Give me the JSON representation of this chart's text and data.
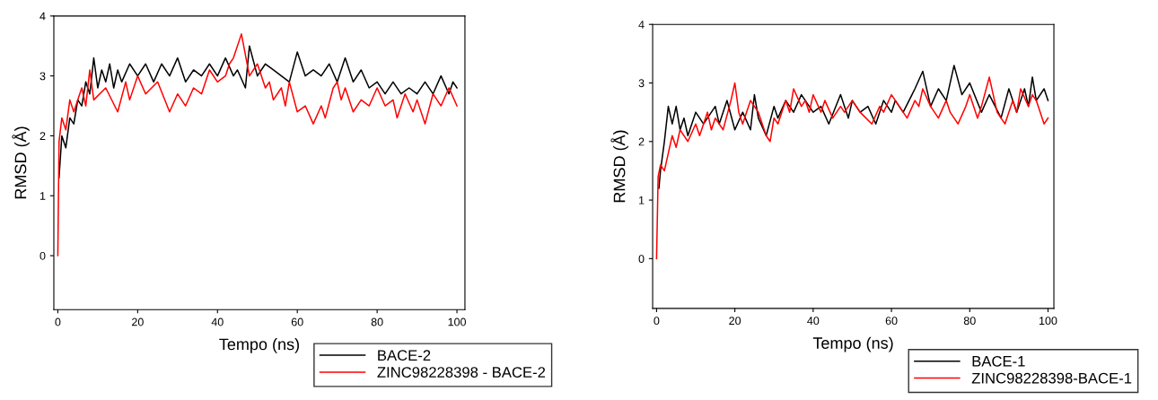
{
  "chart_data": [
    {
      "type": "line",
      "xlabel": "Tempo (ns)",
      "ylabel": "RMSD (Å)",
      "xlim": [
        -1,
        102
      ],
      "ylim": [
        -0.9,
        4
      ],
      "xticks": [
        0,
        20,
        40,
        60,
        80,
        100
      ],
      "yticks": [
        0,
        1,
        2,
        3,
        4
      ],
      "legend": "bottom right",
      "series": [
        {
          "name": "BACE-2",
          "color": "#000000",
          "x": [
            0.3,
            0.6,
            1,
            2,
            3,
            4,
            5,
            6,
            7,
            8,
            9,
            10,
            11,
            12,
            13,
            14,
            15,
            16,
            18,
            20,
            22,
            24,
            26,
            28,
            30,
            32,
            34,
            36,
            38,
            40,
            42,
            44,
            45,
            47,
            48,
            50,
            52,
            54,
            56,
            58,
            60,
            62,
            64,
            66,
            68,
            70,
            72,
            74,
            76,
            78,
            80,
            82,
            84,
            86,
            88,
            90,
            92,
            94,
            96,
            98,
            99,
            100
          ],
          "values": [
            1.3,
            1.6,
            2.0,
            1.8,
            2.3,
            2.2,
            2.6,
            2.5,
            2.9,
            2.7,
            3.3,
            2.8,
            3.1,
            2.9,
            3.2,
            2.8,
            3.1,
            2.9,
            3.2,
            3.0,
            3.2,
            2.9,
            3.2,
            3.0,
            3.3,
            2.9,
            3.1,
            3.0,
            3.2,
            3.0,
            3.3,
            3.0,
            3.1,
            2.8,
            3.5,
            3.0,
            3.2,
            3.1,
            3.0,
            2.9,
            3.4,
            3.0,
            3.1,
            3.0,
            3.2,
            2.9,
            3.3,
            2.9,
            3.1,
            2.8,
            2.9,
            2.7,
            2.9,
            2.7,
            2.8,
            2.7,
            2.9,
            2.7,
            3.0,
            2.7,
            2.9,
            2.8
          ]
        },
        {
          "name": "ZINC98228398 - BACE-2",
          "color": "#ff0000",
          "x": [
            0,
            0.3,
            1,
            2,
            3,
            4,
            6,
            7,
            8,
            9,
            12,
            15,
            17,
            18,
            20,
            22,
            25,
            28,
            30,
            32,
            34,
            36,
            38,
            40,
            42,
            43,
            44,
            46,
            48,
            50,
            52,
            53,
            54,
            56,
            57,
            58,
            60,
            62,
            64,
            66,
            67,
            69,
            70,
            71,
            72,
            74,
            76,
            78,
            80,
            82,
            84,
            85,
            87,
            89,
            90,
            92,
            94,
            96,
            98,
            100
          ],
          "values": [
            0,
            1.9,
            2.3,
            2.1,
            2.6,
            2.4,
            2.8,
            2.5,
            3.1,
            2.6,
            2.8,
            2.4,
            2.9,
            2.6,
            3.0,
            2.7,
            2.9,
            2.4,
            2.7,
            2.5,
            2.8,
            2.7,
            3.1,
            2.9,
            3.0,
            3.2,
            3.3,
            3.7,
            3.0,
            3.2,
            2.8,
            2.9,
            2.6,
            2.8,
            2.5,
            2.9,
            2.4,
            2.5,
            2.2,
            2.5,
            2.3,
            2.8,
            2.9,
            2.6,
            2.8,
            2.4,
            2.6,
            2.5,
            2.8,
            2.5,
            2.6,
            2.3,
            2.7,
            2.4,
            2.6,
            2.2,
            2.7,
            2.5,
            2.8,
            2.5
          ]
        }
      ]
    },
    {
      "type": "line",
      "xlabel": "Tempo (ns)",
      "ylabel": "RMSD (Å)",
      "xlim": [
        -1,
        101.5
      ],
      "ylim": [
        -0.85,
        4
      ],
      "xticks": [
        0,
        20,
        40,
        60,
        80,
        100
      ],
      "yticks": [
        0,
        1,
        2,
        3,
        4
      ],
      "legend": "bottom right",
      "series": [
        {
          "name": "BACE-1",
          "color": "#000000",
          "x": [
            0.6,
            1,
            2,
            3,
            4,
            5,
            6,
            7,
            8,
            10,
            12,
            15,
            16,
            18,
            20,
            22,
            24,
            25,
            26,
            28,
            30,
            31,
            33,
            35,
            37,
            40,
            42,
            44,
            47,
            49,
            50,
            52,
            54,
            56,
            58,
            60,
            61,
            63,
            66,
            68,
            70,
            72,
            74,
            76,
            78,
            80,
            83,
            85,
            88,
            90,
            92,
            94,
            95,
            96,
            97,
            99,
            100
          ],
          "values": [
            1.2,
            1.5,
            2.0,
            2.6,
            2.3,
            2.6,
            2.2,
            2.4,
            2.1,
            2.5,
            2.3,
            2.6,
            2.3,
            2.7,
            2.2,
            2.5,
            2.2,
            2.8,
            2.4,
            2.1,
            2.6,
            2.4,
            2.7,
            2.5,
            2.8,
            2.5,
            2.6,
            2.3,
            2.8,
            2.4,
            2.7,
            2.5,
            2.6,
            2.3,
            2.7,
            2.5,
            2.7,
            2.5,
            2.9,
            3.2,
            2.6,
            2.9,
            2.7,
            3.3,
            2.8,
            3.0,
            2.5,
            2.8,
            2.4,
            2.9,
            2.5,
            2.9,
            2.6,
            3.1,
            2.7,
            2.9,
            2.7
          ]
        },
        {
          "name": "ZINC98228398-BACE-1",
          "color": "#ff0000",
          "x": [
            0,
            0.4,
            1,
            2,
            3,
            4,
            5,
            6,
            8,
            10,
            11,
            13,
            14,
            15,
            17,
            19,
            20,
            21,
            22,
            24,
            26,
            28,
            29,
            30,
            31,
            33,
            34,
            35,
            37,
            38,
            39,
            40,
            42,
            43,
            45,
            47,
            48,
            50,
            52,
            55,
            57,
            58,
            60,
            62,
            64,
            66,
            67,
            68,
            70,
            72,
            74,
            75,
            77,
            79,
            80,
            82,
            83,
            85,
            86,
            87,
            89,
            91,
            92,
            93,
            95,
            96,
            97,
            99,
            100
          ],
          "values": [
            0,
            1.4,
            1.6,
            1.5,
            1.8,
            2.1,
            1.9,
            2.2,
            2.0,
            2.3,
            2.1,
            2.5,
            2.2,
            2.4,
            2.2,
            2.7,
            3.0,
            2.5,
            2.3,
            2.7,
            2.5,
            2.1,
            2.0,
            2.4,
            2.3,
            2.7,
            2.5,
            2.9,
            2.6,
            2.7,
            2.5,
            2.8,
            2.5,
            2.7,
            2.4,
            2.6,
            2.5,
            2.7,
            2.5,
            2.3,
            2.6,
            2.5,
            2.8,
            2.6,
            2.4,
            2.7,
            2.6,
            2.9,
            2.6,
            2.4,
            2.7,
            2.5,
            2.3,
            2.6,
            2.8,
            2.4,
            2.6,
            3.1,
            2.8,
            2.5,
            2.3,
            2.7,
            2.5,
            2.9,
            2.6,
            2.8,
            2.7,
            2.3,
            2.4
          ]
        }
      ]
    }
  ]
}
